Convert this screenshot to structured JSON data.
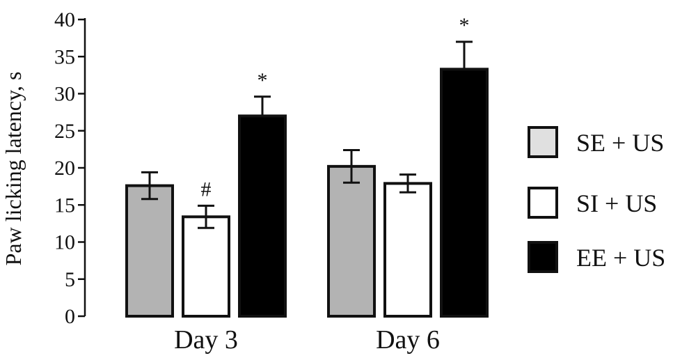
{
  "chart_data": {
    "type": "bar",
    "title": "",
    "xlabel": "",
    "ylabel": "Paw licking latency, s",
    "ylim": [
      0,
      40
    ],
    "yticks": [
      0,
      5,
      10,
      15,
      20,
      25,
      30,
      35,
      40
    ],
    "categories": [
      "Day 3",
      "Day 6"
    ],
    "series": [
      {
        "name": "SE + US",
        "color": "#b3b3b3",
        "legend_color": "#e0e0e0",
        "values": [
          17.6,
          20.2
        ],
        "errors": [
          1.8,
          2.2
        ],
        "annotations": [
          "",
          ""
        ]
      },
      {
        "name": "SI + US",
        "color": "#ffffff",
        "legend_color": "#ffffff",
        "values": [
          13.4,
          17.9
        ],
        "errors": [
          1.5,
          1.2
        ],
        "annotations": [
          "#",
          ""
        ]
      },
      {
        "name": "EE + US",
        "color": "#000000",
        "legend_color": "#000000",
        "values": [
          27.0,
          33.3
        ],
        "errors": [
          2.6,
          3.7
        ],
        "annotations": [
          "*",
          "*"
        ]
      }
    ],
    "legend_position": "right",
    "grid": false
  }
}
